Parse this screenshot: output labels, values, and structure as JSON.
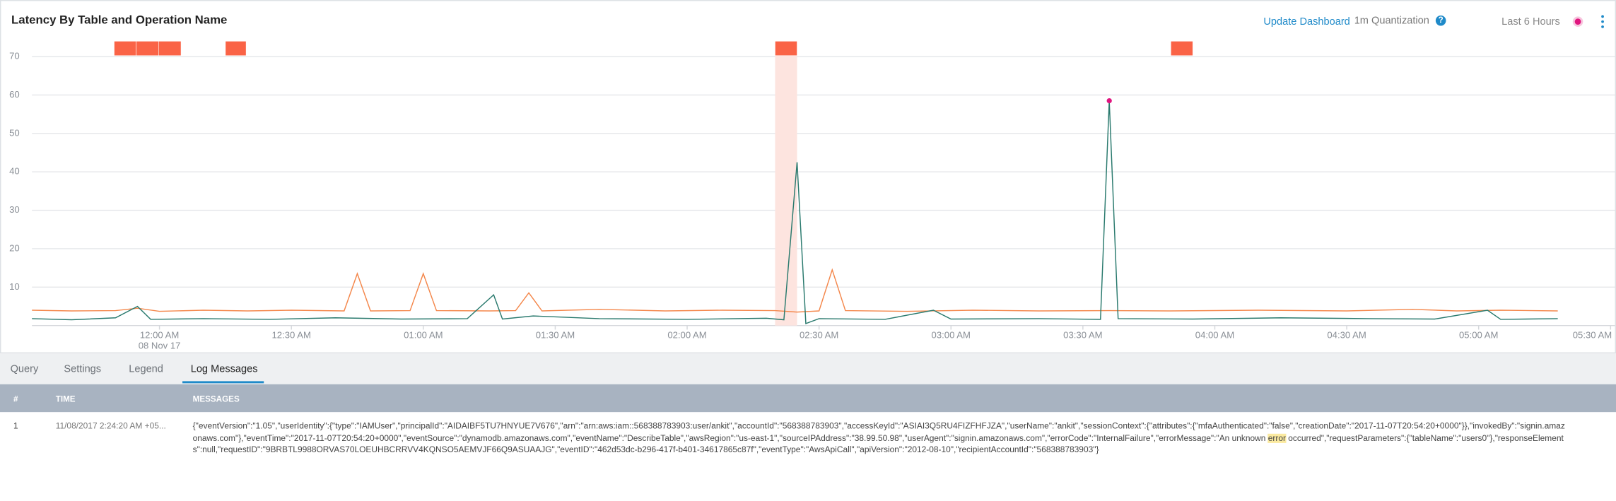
{
  "header": {
    "title": "Latency By Table and Operation Name",
    "update": "Update Dashboard",
    "quantization": "1m Quantization",
    "help": "?",
    "range": "Last 6 Hours"
  },
  "chart_data": {
    "type": "line",
    "xlim": [
      -29,
      331
    ],
    "ylim": [
      0,
      74
    ],
    "xticks": [
      {
        "value": 0,
        "label": "12:00 AM"
      },
      {
        "value": 30,
        "label": "12:30 AM"
      },
      {
        "value": 60,
        "label": "01:00 AM"
      },
      {
        "value": 90,
        "label": "01:30 AM"
      },
      {
        "value": 120,
        "label": "02:00 AM"
      },
      {
        "value": 150,
        "label": "02:30 AM"
      },
      {
        "value": 180,
        "label": "03:00 AM"
      },
      {
        "value": 210,
        "label": "03:30 AM"
      },
      {
        "value": 240,
        "label": "04:00 AM"
      },
      {
        "value": 270,
        "label": "04:30 AM"
      },
      {
        "value": 300,
        "label": "05:00 AM"
      },
      {
        "value": 330,
        "label": "05:30 AM"
      }
    ],
    "x_date_label": "08 Nov 17",
    "yticks": [
      10,
      20,
      30,
      40,
      50,
      60,
      70
    ],
    "grid": true,
    "events": [
      [
        -10.3,
        -5.3
      ],
      [
        -5.3,
        -0.2
      ],
      [
        -0.2,
        4.9
      ],
      [
        15,
        19.7
      ],
      [
        140,
        145
      ],
      [
        230,
        235
      ]
    ],
    "event_color": "#fa6346",
    "highlight_event": 4,
    "highlight_color": "#fde4df",
    "series": [
      {
        "color": "#f4874b",
        "x": [
          -29,
          -20,
          -10,
          -5,
          0,
          10,
          20,
          30,
          42,
          45,
          48,
          57,
          60,
          63,
          75,
          81,
          84,
          87,
          100,
          115,
          128,
          140,
          145,
          150,
          153,
          156,
          170,
          185,
          200,
          216,
          230,
          250,
          270,
          285,
          295,
          305,
          318
        ],
        "values": [
          4.0,
          3.8,
          3.9,
          4.5,
          3.7,
          4.0,
          3.8,
          4.0,
          3.8,
          13.5,
          3.8,
          3.9,
          13.5,
          3.9,
          3.8,
          3.9,
          8.5,
          3.8,
          4.2,
          3.8,
          4.0,
          3.9,
          3.5,
          3.8,
          14.5,
          3.9,
          3.7,
          4.0,
          3.8,
          3.9,
          3.8,
          4.0,
          3.8,
          4.2,
          3.8,
          4.0,
          3.8
        ]
      },
      {
        "color": "#2a7a6e",
        "marker_color": "#e0157f",
        "x": [
          -29,
          -20,
          -10,
          -5,
          -2,
          10,
          25,
          40,
          55,
          70,
          76,
          78,
          85,
          100,
          120,
          138,
          142,
          145,
          147,
          150,
          165,
          176,
          180,
          200,
          214,
          216,
          218,
          235,
          255,
          275,
          290,
          302,
          305,
          318
        ],
        "values": [
          1.8,
          1.5,
          2.0,
          5.0,
          1.6,
          1.8,
          1.6,
          2.0,
          1.7,
          1.8,
          8.0,
          1.7,
          2.5,
          1.8,
          1.6,
          1.9,
          1.5,
          42.5,
          0.5,
          1.8,
          1.6,
          4.0,
          1.7,
          1.8,
          1.6,
          58.5,
          1.8,
          1.7,
          2.0,
          1.8,
          1.7,
          4.0,
          1.6,
          1.8
        ]
      }
    ]
  },
  "tabs": [
    "Query",
    "Settings",
    "Legend",
    "Log Messages"
  ],
  "table": {
    "columns": [
      "#",
      "TIME",
      "MESSAGES"
    ],
    "rows": [
      {
        "index": "1",
        "time": "11/08/2017 2:24:20 AM +05...",
        "message": [
          "{\"eventVersion\":\"1.05\",\"userIdentity\":{\"type\":\"IAMUser\",\"principalId\":\"AIDAIBF5TU7HNYUE7V676\",\"arn\":\"arn:aws:iam::568388783903:user/ankit\",\"accountId\":\"568388783903\",\"accessKeyId\":\"ASIAI3Q5RU4FIZFHFJZA\",\"userName\":\"ankit\",\"sessionContext\":{\"attributes\":{\"mfaAuthenticated\":\"false\",\"creationDate\":\"2017-11-07T20:54:20+0000\"}},\"invokedBy\":\"signin.amazonaws.com\"},\"eventTime\":\"2017-11-07T20:54:20+0000\",\"eventSource\":\"dynamodb.amazonaws.com\",\"eventName\":\"DescribeTable\",\"awsRegion\":\"us-east-1\",\"sourceIPAddress\":\"38.99.50.98\",\"userAgent\":\"signin.amazonaws.com\",\"errorCode\":\"InternalFailure\",\"errorMessage\":\"An unknown ",
          "error",
          " occurred\",\"requestParameters\":{\"tableName\":\"users0\"},\"responseElements\":null,\"requestID\":\"9BRBTL9988ORVAS70LOEUHBCRRVV4KQNSO5AEMVJF66Q9ASUAAJG\",\"eventID\":\"462d53dc-b296-417f-b401-34617865c87f\",\"eventType\":\"AwsApiCall\",\"apiVersion\":\"2012-08-10\",\"recipientAccountId\":\"568388783903\"}"
        ]
      }
    ]
  }
}
